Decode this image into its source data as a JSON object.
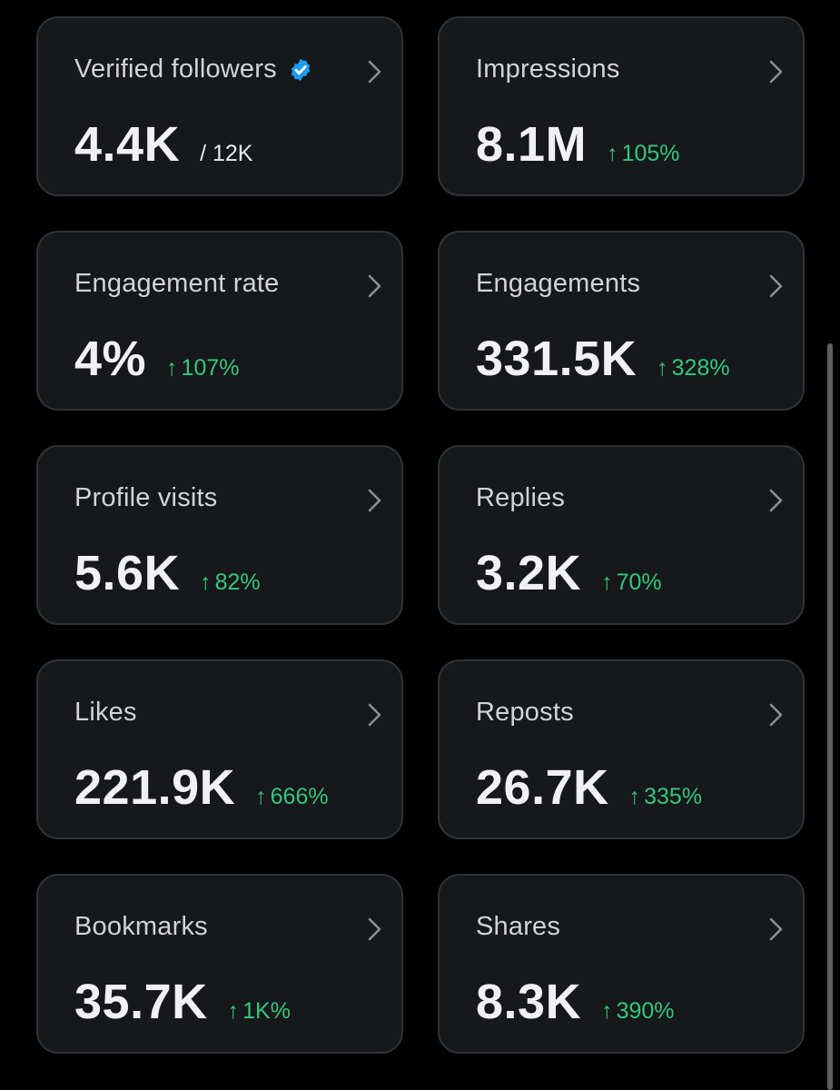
{
  "colors": {
    "background": "#000000",
    "card_background": "#16181c",
    "card_border": "#2f3336",
    "positive": "#34c77b",
    "verified_badge": "#1d9bf0"
  },
  "cards": [
    {
      "title": "Verified followers",
      "value": "4.4K",
      "sub": "/ 12K",
      "icon": "verified-badge-icon"
    },
    {
      "title": "Impressions",
      "value": "8.1M",
      "arrow": "↑",
      "change": "105%"
    },
    {
      "title": "Engagement rate",
      "value": "4%",
      "arrow": "↑",
      "change": "107%"
    },
    {
      "title": "Engagements",
      "value": "331.5K",
      "arrow": "↑",
      "change": "328%"
    },
    {
      "title": "Profile visits",
      "value": "5.6K",
      "arrow": "↑",
      "change": "82%"
    },
    {
      "title": "Replies",
      "value": "3.2K",
      "arrow": "↑",
      "change": "70%"
    },
    {
      "title": "Likes",
      "value": "221.9K",
      "arrow": "↑",
      "change": "666%"
    },
    {
      "title": "Reposts",
      "value": "26.7K",
      "arrow": "↑",
      "change": "335%"
    },
    {
      "title": "Bookmarks",
      "value": "35.7K",
      "arrow": "↑",
      "change": "1K%"
    },
    {
      "title": "Shares",
      "value": "8.3K",
      "arrow": "↑",
      "change": "390%"
    }
  ]
}
